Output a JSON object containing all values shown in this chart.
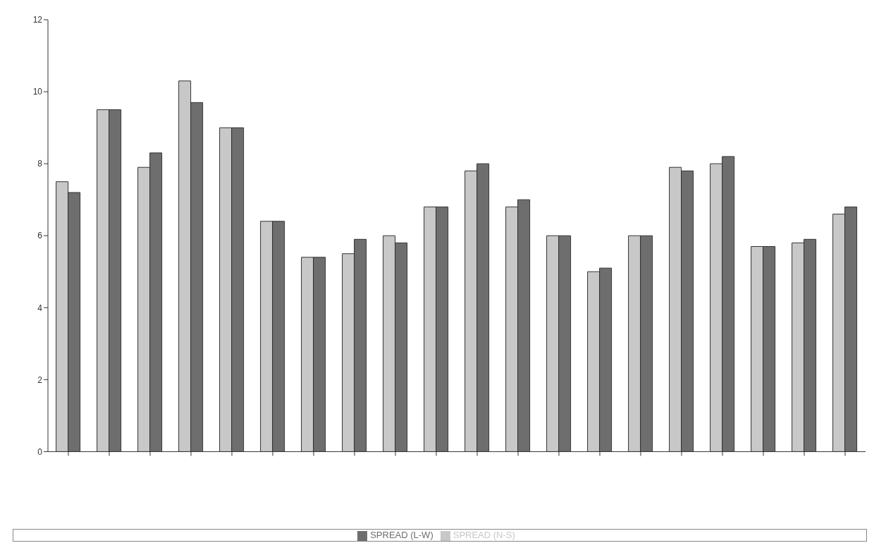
{
  "chart_data": {
    "type": "bar",
    "categories": [
      null,
      null,
      null,
      null,
      null,
      null,
      null,
      null,
      null,
      null,
      null,
      null,
      null,
      null,
      null,
      null,
      null,
      null,
      null,
      null
    ],
    "series": [
      {
        "name": "SPREAD (N-S)",
        "color": "#c8c8c8",
        "values": [
          7.5,
          9.5,
          7.9,
          10.3,
          9.0,
          6.4,
          5.4,
          5.5,
          6.0,
          6.8,
          7.8,
          6.8,
          6.0,
          5.0,
          6.0,
          7.9,
          8.0,
          5.7,
          5.8,
          6.6
        ]
      },
      {
        "name": "SPREAD (L-W)",
        "color": "#6e6e6e",
        "values": [
          7.2,
          9.5,
          8.3,
          9.7,
          9.0,
          6.4,
          5.4,
          5.9,
          5.8,
          6.8,
          8.0,
          7.0,
          6.0,
          5.1,
          6.0,
          7.8,
          8.2,
          5.7,
          5.9,
          6.8
        ]
      }
    ],
    "ylim": [
      0,
      12
    ],
    "yticks": [
      0,
      2,
      4,
      6,
      8,
      10,
      12
    ],
    "legend": "bottom"
  }
}
